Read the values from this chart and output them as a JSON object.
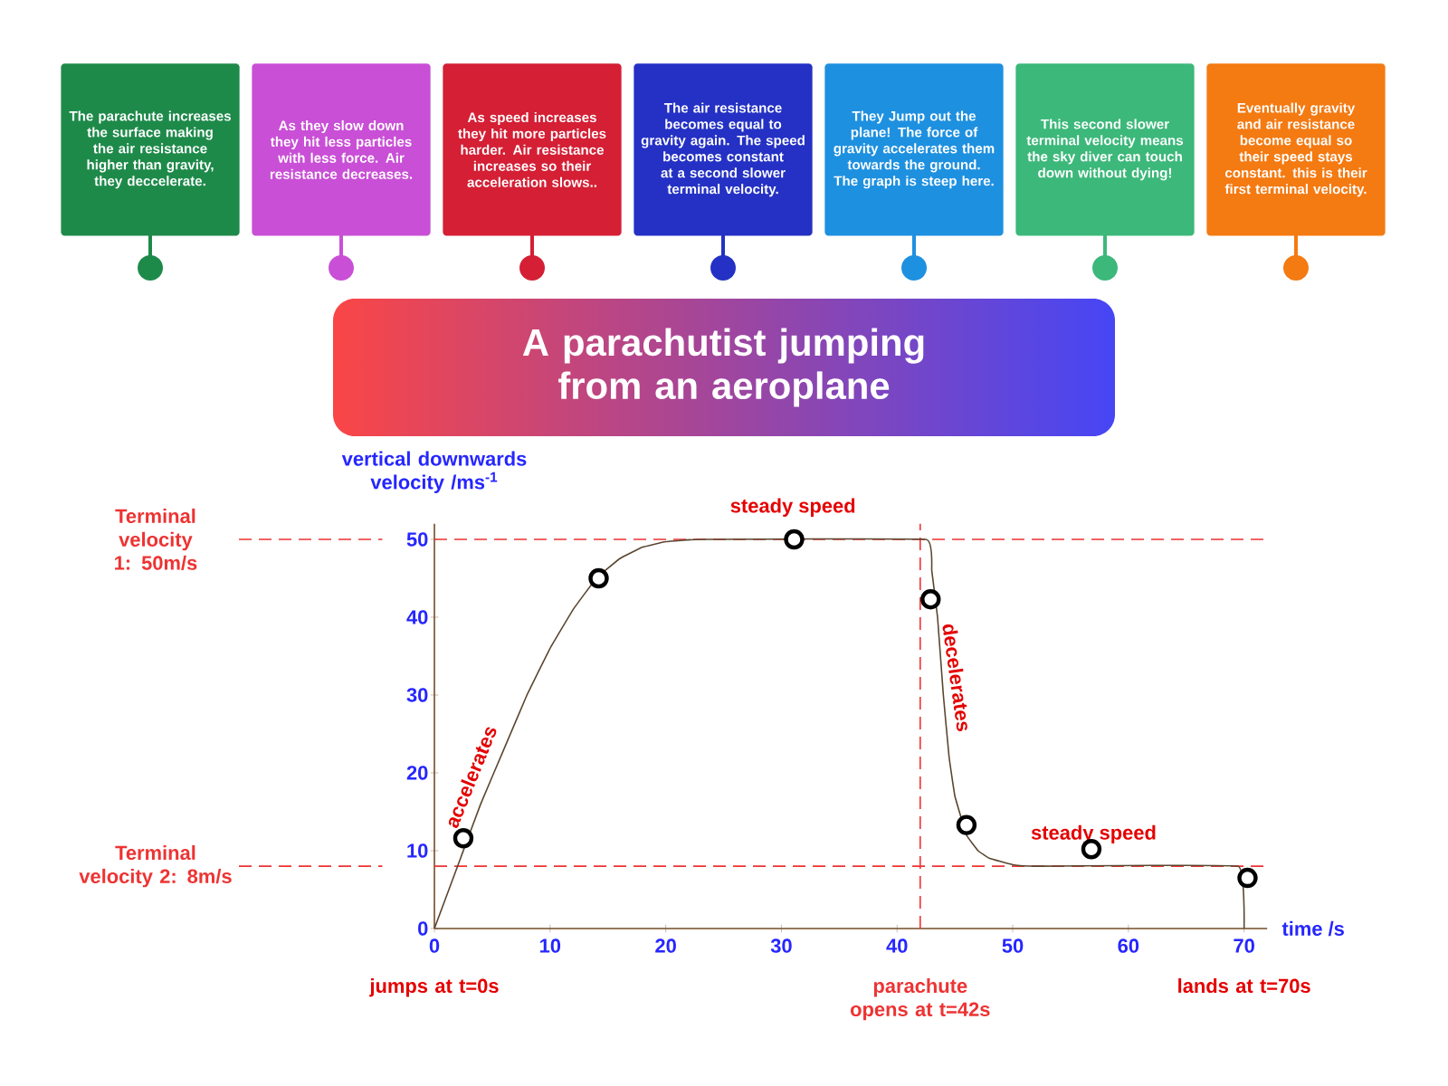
{
  "chart_data": {
    "type": "line",
    "title": "A parachutist jumping from an aeroplane",
    "xlabel": "time /s",
    "ylabel": "vertical downwards velocity /ms$^{-1}$",
    "xlim": [
      0,
      72
    ],
    "ylim": [
      0,
      52
    ],
    "xticks": [
      0,
      10,
      20,
      30,
      40,
      50,
      60,
      70
    ],
    "yticks": [
      0,
      10,
      20,
      30,
      40,
      50
    ],
    "series": [
      {
        "type": "line",
        "color": "#5a4630",
        "x": [
          0,
          2,
          4,
          6,
          8,
          10,
          12,
          14,
          16,
          18,
          20,
          23,
          42.5,
          43,
          43.5,
          44,
          44.5,
          45,
          46,
          47,
          48,
          50,
          52,
          69.5,
          70
        ],
        "values": [
          0,
          8,
          16,
          23,
          30,
          36,
          41,
          45,
          47.5,
          49,
          49.7,
          50,
          50,
          46,
          40,
          30,
          22,
          17,
          12,
          10,
          9,
          8.2,
          8,
          8,
          0
        ]
      },
      {
        "type": "scatter",
        "marker": "circle",
        "color": "#000000",
        "x": [
          2.5,
          14.2,
          31.1,
          42.9,
          46,
          56.8,
          70.3
        ],
        "values": [
          11.6,
          45,
          50,
          42.3,
          13.3,
          10.2,
          6.5
        ]
      }
    ],
    "ref_lines": [
      {
        "axis": "y",
        "value": 50,
        "label": "Terminal velocity 1: 50m/s",
        "color": "#ee3333",
        "line_style": "dashed"
      },
      {
        "axis": "y",
        "value": 8,
        "label": "Terminal velocity 2: 8m/s",
        "color": "#ee3333",
        "line_style": "dashed"
      },
      {
        "axis": "x",
        "value": 42,
        "label": "parachute opens at t=42s",
        "color": "#ee3333",
        "line_style": "dashed"
      }
    ],
    "annotations": [
      "The parachute increases the surface making the air resistance higher than gravity, they deccelerate.",
      "As they slow down they hit less particles with less force. Air resistance decreases.",
      "As speed increases they hit more particles harder. Air resistance increases so their acceleration slows..",
      "The air resistance becomes equal to gravity again. The speed becomes constant at a second slower terminal velocity.",
      "They Jump out the plane! The force of gravity accelerates them towards the ground. The graph is steep here.",
      "This second slower terminal velocity means the sky diver can touch down without dying!",
      "Eventually gravity and air resistance become equal so their speed stays constant. this is their first terminal velocity.",
      {
        "text": "accelerates",
        "x": 4,
        "y": 18
      },
      {
        "text": "steady speed",
        "x": 31,
        "y": 50
      },
      {
        "text": "decelerates",
        "x": 44,
        "y": 32
      },
      {
        "text": "steady speed",
        "x": 57,
        "y": 8
      },
      {
        "text": "jumps at t=0s",
        "x": 0,
        "y": 0
      },
      {
        "text": "lands at t=70s",
        "x": 70,
        "y": 0
      }
    ]
  }
}
